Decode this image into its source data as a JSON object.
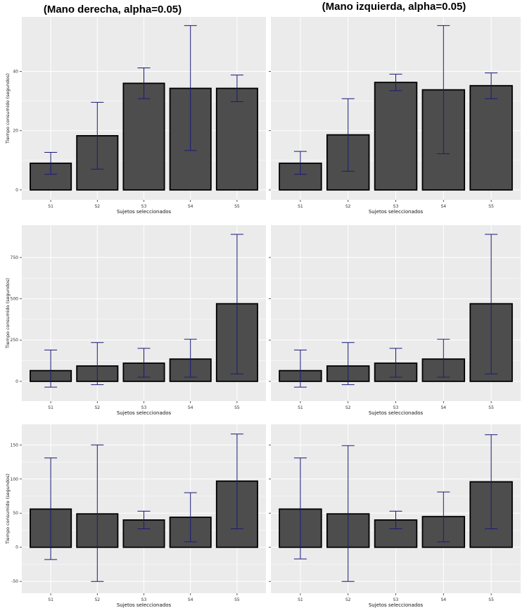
{
  "chart_data": [
    {
      "type": "bar",
      "title": "(Mano derecha, alpha=0.05)",
      "xlabel": "Sujetos seleccionados",
      "ylabel": "Tiempo consumido (segundos)",
      "categories": [
        "S1",
        "S2",
        "S3",
        "S4",
        "S5"
      ],
      "values": [
        9,
        18.3,
        36,
        34.3,
        34.3
      ],
      "error_low": [
        5.3,
        7,
        30.8,
        13.3,
        29.8
      ],
      "error_high": [
        12.7,
        29.6,
        41.2,
        55.5,
        38.8
      ],
      "ylim": [
        -0.5,
        57
      ],
      "yticks": [
        0,
        20,
        40
      ],
      "ytick_labels": [
        "0",
        "20",
        "40"
      ]
    },
    {
      "type": "bar",
      "title": "(Mano izquierda, alpha=0.05)",
      "xlabel": "Sujetos seleccionados",
      "ylabel": "",
      "categories": [
        "S1",
        "S2",
        "S3",
        "S4",
        "S5"
      ],
      "values": [
        9,
        18.6,
        36.3,
        33.8,
        35.2
      ],
      "error_low": [
        5.3,
        6.3,
        33.5,
        12.2,
        30.8
      ],
      "error_high": [
        13,
        30.8,
        39.1,
        55.5,
        39.5
      ],
      "ylim": [
        -0.5,
        57
      ],
      "yticks": [
        0,
        20,
        40
      ],
      "ytick_labels": [
        "",
        "",
        ""
      ]
    },
    {
      "type": "bar",
      "title": "",
      "xlabel": "Sujetos seleccionados",
      "ylabel": "Tiempo consumido (segundos)",
      "categories": [
        "S1",
        "S2",
        "S3",
        "S4",
        "S5"
      ],
      "values": [
        65,
        93,
        110,
        135,
        470
      ],
      "error_low": [
        -35,
        -20,
        25,
        25,
        45
      ],
      "error_high": [
        190,
        235,
        200,
        255,
        890
      ],
      "ylim": [
        -60,
        920
      ],
      "yticks": [
        0,
        250,
        500,
        750
      ],
      "ytick_labels": [
        "0",
        "250",
        "500",
        "750"
      ]
    },
    {
      "type": "bar",
      "title": "",
      "xlabel": "Sujetos seleccionados",
      "ylabel": "",
      "categories": [
        "S1",
        "S2",
        "S3",
        "S4",
        "S5"
      ],
      "values": [
        65,
        93,
        110,
        135,
        470
      ],
      "error_low": [
        -35,
        -20,
        25,
        25,
        45
      ],
      "error_high": [
        190,
        235,
        200,
        255,
        890
      ],
      "ylim": [
        -60,
        920
      ],
      "yticks": [
        0,
        250,
        500,
        750
      ],
      "ytick_labels": [
        "",
        "",
        "",
        ""
      ]
    },
    {
      "type": "bar",
      "title": "",
      "xlabel": "Sujetos seleccionados",
      "ylabel": "Tiempo consumido (segundos)",
      "categories": [
        "S1",
        "S2",
        "S3",
        "S4",
        "S5"
      ],
      "values": [
        56,
        49,
        40,
        44,
        97
      ],
      "error_low": [
        -18,
        -50,
        27,
        8,
        27
      ],
      "error_high": [
        131,
        150,
        53,
        80,
        166
      ],
      "ylim": [
        -57,
        174
      ],
      "yticks": [
        -50,
        0,
        50,
        100,
        150
      ],
      "ytick_labels": [
        "-50",
        "0",
        "50",
        "100",
        "150"
      ]
    },
    {
      "type": "bar",
      "title": "",
      "xlabel": "Sujetos seleccionados",
      "ylabel": "",
      "categories": [
        "S1",
        "S2",
        "S3",
        "S4",
        "S5"
      ],
      "values": [
        56,
        49,
        40,
        45,
        96
      ],
      "error_low": [
        -17,
        -50,
        27,
        8,
        27
      ],
      "error_high": [
        131,
        149,
        53,
        81,
        165
      ],
      "ylim": [
        -57,
        174
      ],
      "yticks": [
        -50,
        0,
        50,
        100,
        150
      ],
      "ytick_labels": [
        "",
        "",
        "",
        "",
        ""
      ]
    }
  ],
  "colors": {
    "panel": "#ebebeb",
    "grid": "#ffffff",
    "bar": "#4d4d4d",
    "bar_edge": "#000000",
    "error": "#1a1a7a"
  }
}
